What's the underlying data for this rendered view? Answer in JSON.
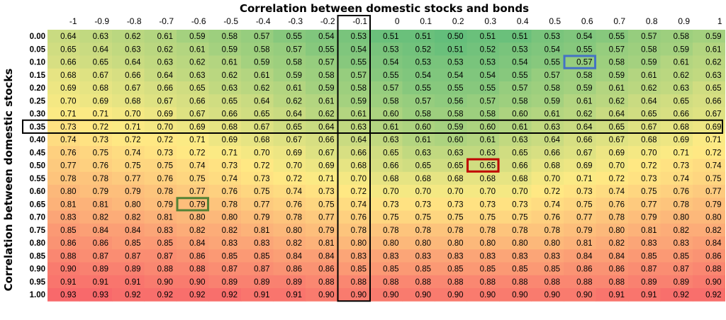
{
  "chart_data": {
    "type": "heatmap",
    "title": "",
    "xlabel": "Correlation between domestic stocks and bonds",
    "ylabel": "Correlation between domestic stocks",
    "x_labels": [
      "-1",
      "-0.9",
      "-0.8",
      "-0.7",
      "-0.6",
      "-0.5",
      "-0.4",
      "-0.3",
      "-0.2",
      "-0.1",
      "0",
      "0.1",
      "0.2",
      "0.3",
      "0.4",
      "0.5",
      "0.6",
      "0.7",
      "0.8",
      "0.9",
      "1"
    ],
    "y_labels": [
      "0.00",
      "0.05",
      "0.10",
      "0.15",
      "0.20",
      "0.25",
      "0.30",
      "0.35",
      "0.40",
      "0.45",
      "0.50",
      "0.55",
      "0.60",
      "0.65",
      "0.70",
      "0.75",
      "0.80",
      "0.85",
      "0.90",
      "0.95",
      "1.00"
    ],
    "values": [
      [
        "0.64",
        "0.63",
        "0.62",
        "0.61",
        "0.59",
        "0.58",
        "0.57",
        "0.55",
        "0.54",
        "0.53",
        "0.51",
        "0.51",
        "0.50",
        "0.51",
        "0.51",
        "0.53",
        "0.54",
        "0.55",
        "0.57",
        "0.58",
        "0.59"
      ],
      [
        "0.65",
        "0.64",
        "0.63",
        "0.62",
        "0.61",
        "0.59",
        "0.58",
        "0.57",
        "0.55",
        "0.54",
        "0.53",
        "0.52",
        "0.51",
        "0.52",
        "0.53",
        "0.54",
        "0.55",
        "0.57",
        "0.58",
        "0.59",
        "0.61"
      ],
      [
        "0.66",
        "0.65",
        "0.64",
        "0.63",
        "0.62",
        "0.61",
        "0.59",
        "0.58",
        "0.57",
        "0.55",
        "0.54",
        "0.53",
        "0.53",
        "0.53",
        "0.54",
        "0.55",
        "0.57",
        "0.58",
        "0.59",
        "0.61",
        "0.62"
      ],
      [
        "0.68",
        "0.67",
        "0.66",
        "0.64",
        "0.63",
        "0.62",
        "0.61",
        "0.59",
        "0.58",
        "0.57",
        "0.55",
        "0.54",
        "0.54",
        "0.54",
        "0.55",
        "0.57",
        "0.58",
        "0.59",
        "0.61",
        "0.62",
        "0.63"
      ],
      [
        "0.69",
        "0.68",
        "0.67",
        "0.66",
        "0.65",
        "0.63",
        "0.62",
        "0.61",
        "0.59",
        "0.58",
        "0.57",
        "0.55",
        "0.55",
        "0.55",
        "0.57",
        "0.58",
        "0.59",
        "0.61",
        "0.62",
        "0.63",
        "0.65"
      ],
      [
        "0.70",
        "0.69",
        "0.68",
        "0.67",
        "0.66",
        "0.65",
        "0.64",
        "0.62",
        "0.61",
        "0.59",
        "0.58",
        "0.57",
        "0.56",
        "0.57",
        "0.58",
        "0.59",
        "0.61",
        "0.62",
        "0.64",
        "0.65",
        "0.66"
      ],
      [
        "0.71",
        "0.71",
        "0.70",
        "0.69",
        "0.67",
        "0.66",
        "0.65",
        "0.64",
        "0.62",
        "0.61",
        "0.60",
        "0.58",
        "0.58",
        "0.58",
        "0.60",
        "0.61",
        "0.62",
        "0.64",
        "0.65",
        "0.66",
        "0.67"
      ],
      [
        "0.73",
        "0.72",
        "0.71",
        "0.70",
        "0.69",
        "0.68",
        "0.67",
        "0.65",
        "0.64",
        "0.63",
        "0.61",
        "0.60",
        "0.59",
        "0.60",
        "0.61",
        "0.63",
        "0.64",
        "0.65",
        "0.67",
        "0.68",
        "0.69"
      ],
      [
        "0.74",
        "0.73",
        "0.72",
        "0.72",
        "0.71",
        "0.69",
        "0.68",
        "0.67",
        "0.66",
        "0.64",
        "0.63",
        "0.61",
        "0.60",
        "0.61",
        "0.63",
        "0.64",
        "0.66",
        "0.67",
        "0.68",
        "0.69",
        "0.71"
      ],
      [
        "0.76",
        "0.75",
        "0.74",
        "0.73",
        "0.72",
        "0.71",
        "0.70",
        "0.69",
        "0.67",
        "0.66",
        "0.65",
        "0.63",
        "0.63",
        "0.63",
        "0.65",
        "0.66",
        "0.67",
        "0.69",
        "0.70",
        "0.71",
        "0.72"
      ],
      [
        "0.77",
        "0.76",
        "0.75",
        "0.75",
        "0.74",
        "0.73",
        "0.72",
        "0.70",
        "0.69",
        "0.68",
        "0.66",
        "0.65",
        "0.65",
        "0.65",
        "0.66",
        "0.68",
        "0.69",
        "0.70",
        "0.72",
        "0.73",
        "0.74"
      ],
      [
        "0.78",
        "0.78",
        "0.77",
        "0.76",
        "0.75",
        "0.74",
        "0.73",
        "0.72",
        "0.71",
        "0.70",
        "0.68",
        "0.68",
        "0.68",
        "0.68",
        "0.68",
        "0.70",
        "0.71",
        "0.72",
        "0.73",
        "0.74",
        "0.75"
      ],
      [
        "0.80",
        "0.79",
        "0.79",
        "0.78",
        "0.77",
        "0.76",
        "0.75",
        "0.74",
        "0.73",
        "0.72",
        "0.70",
        "0.70",
        "0.70",
        "0.70",
        "0.70",
        "0.72",
        "0.73",
        "0.74",
        "0.75",
        "0.76",
        "0.77"
      ],
      [
        "0.81",
        "0.81",
        "0.80",
        "0.79",
        "0.79",
        "0.78",
        "0.77",
        "0.76",
        "0.75",
        "0.74",
        "0.73",
        "0.73",
        "0.73",
        "0.73",
        "0.73",
        "0.74",
        "0.75",
        "0.76",
        "0.77",
        "0.78",
        "0.79"
      ],
      [
        "0.83",
        "0.82",
        "0.82",
        "0.81",
        "0.80",
        "0.80",
        "0.79",
        "0.78",
        "0.77",
        "0.76",
        "0.75",
        "0.75",
        "0.75",
        "0.75",
        "0.75",
        "0.76",
        "0.77",
        "0.78",
        "0.79",
        "0.80",
        "0.80"
      ],
      [
        "0.85",
        "0.84",
        "0.84",
        "0.83",
        "0.82",
        "0.82",
        "0.81",
        "0.80",
        "0.79",
        "0.78",
        "0.78",
        "0.78",
        "0.78",
        "0.78",
        "0.78",
        "0.78",
        "0.79",
        "0.80",
        "0.81",
        "0.82",
        "0.82"
      ],
      [
        "0.86",
        "0.86",
        "0.85",
        "0.85",
        "0.84",
        "0.83",
        "0.83",
        "0.82",
        "0.81",
        "0.80",
        "0.80",
        "0.80",
        "0.80",
        "0.80",
        "0.80",
        "0.80",
        "0.81",
        "0.82",
        "0.83",
        "0.83",
        "0.84"
      ],
      [
        "0.88",
        "0.87",
        "0.87",
        "0.87",
        "0.86",
        "0.85",
        "0.85",
        "0.84",
        "0.84",
        "0.83",
        "0.83",
        "0.83",
        "0.83",
        "0.83",
        "0.83",
        "0.83",
        "0.84",
        "0.84",
        "0.85",
        "0.85",
        "0.86"
      ],
      [
        "0.90",
        "0.89",
        "0.89",
        "0.88",
        "0.88",
        "0.87",
        "0.87",
        "0.86",
        "0.86",
        "0.85",
        "0.85",
        "0.85",
        "0.85",
        "0.85",
        "0.85",
        "0.85",
        "0.86",
        "0.86",
        "0.87",
        "0.87",
        "0.88"
      ],
      [
        "0.91",
        "0.91",
        "0.91",
        "0.90",
        "0.90",
        "0.89",
        "0.89",
        "0.89",
        "0.88",
        "0.88",
        "0.88",
        "0.88",
        "0.88",
        "0.88",
        "0.88",
        "0.88",
        "0.88",
        "0.88",
        "0.89",
        "0.89",
        "0.90"
      ],
      [
        "0.93",
        "0.93",
        "0.92",
        "0.92",
        "0.92",
        "0.92",
        "0.91",
        "0.91",
        "0.90",
        "0.90",
        "0.90",
        "0.90",
        "0.90",
        "0.90",
        "0.90",
        "0.90",
        "0.90",
        "0.91",
        "0.91",
        "0.92",
        "0.92"
      ]
    ],
    "color_scale": {
      "low_value": 0.5,
      "high_value": 0.93,
      "low_color": "#63be7b",
      "mid_color": "#ffeb84",
      "high_color": "#f8696b"
    },
    "emphasis": {
      "column_outline": "-0.1",
      "row_outline": "0.35",
      "box_color": "#000000"
    },
    "highlights": [
      {
        "row": "0.10",
        "col": "0.6",
        "color": "#4472c4"
      },
      {
        "row": "0.50",
        "col": "0.3",
        "color": "#c00000"
      },
      {
        "row": "0.65",
        "col": "-0.6",
        "color": "#548235"
      }
    ],
    "grid": false,
    "legend": "none"
  }
}
